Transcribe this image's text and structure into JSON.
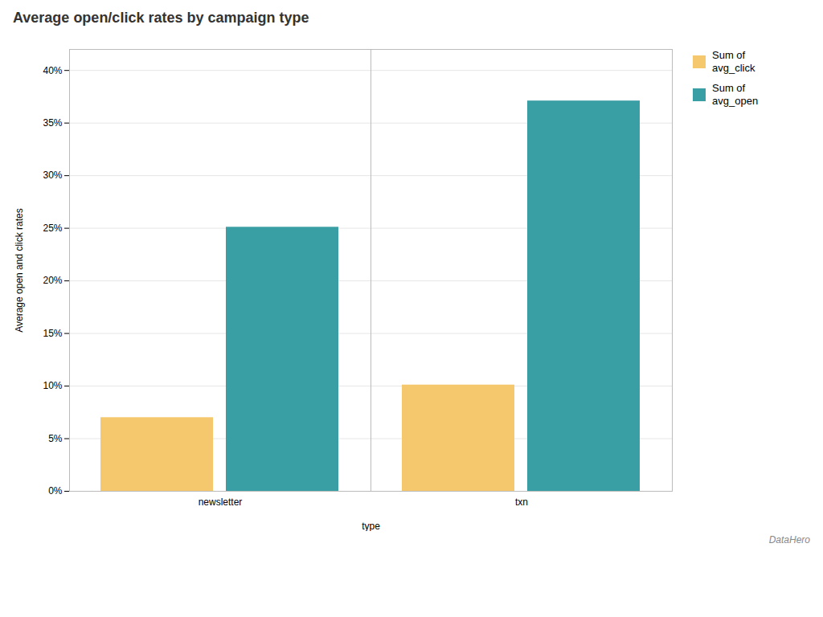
{
  "chart_data": {
    "type": "bar",
    "title": "Average open/click rates by campaign type",
    "categories": [
      "newsletter",
      "txn"
    ],
    "series": [
      {
        "name": "Sum of\navg_click",
        "color": "#F5C86E",
        "values": [
          0.07,
          0.101
        ]
      },
      {
        "name": "Sum of\navg_open",
        "color": "#3A9EA5",
        "values": [
          0.251,
          0.371
        ]
      }
    ],
    "xlabel": "type",
    "ylabel": "Average open and click rates",
    "ylim": [
      0,
      0.42
    ],
    "yticks": [
      {
        "value": 0,
        "label": "0%"
      },
      {
        "value": 0.05,
        "label": "5%"
      },
      {
        "value": 0.1,
        "label": "10%"
      },
      {
        "value": 0.15,
        "label": "15%"
      },
      {
        "value": 0.2,
        "label": "20%"
      },
      {
        "value": 0.25,
        "label": "25%"
      },
      {
        "value": 0.3,
        "label": "30%"
      },
      {
        "value": 0.35,
        "label": "35%"
      },
      {
        "value": 0.4,
        "label": "40%"
      }
    ],
    "grid": true,
    "legend": "right",
    "annotations": [
      "DataHero"
    ]
  }
}
